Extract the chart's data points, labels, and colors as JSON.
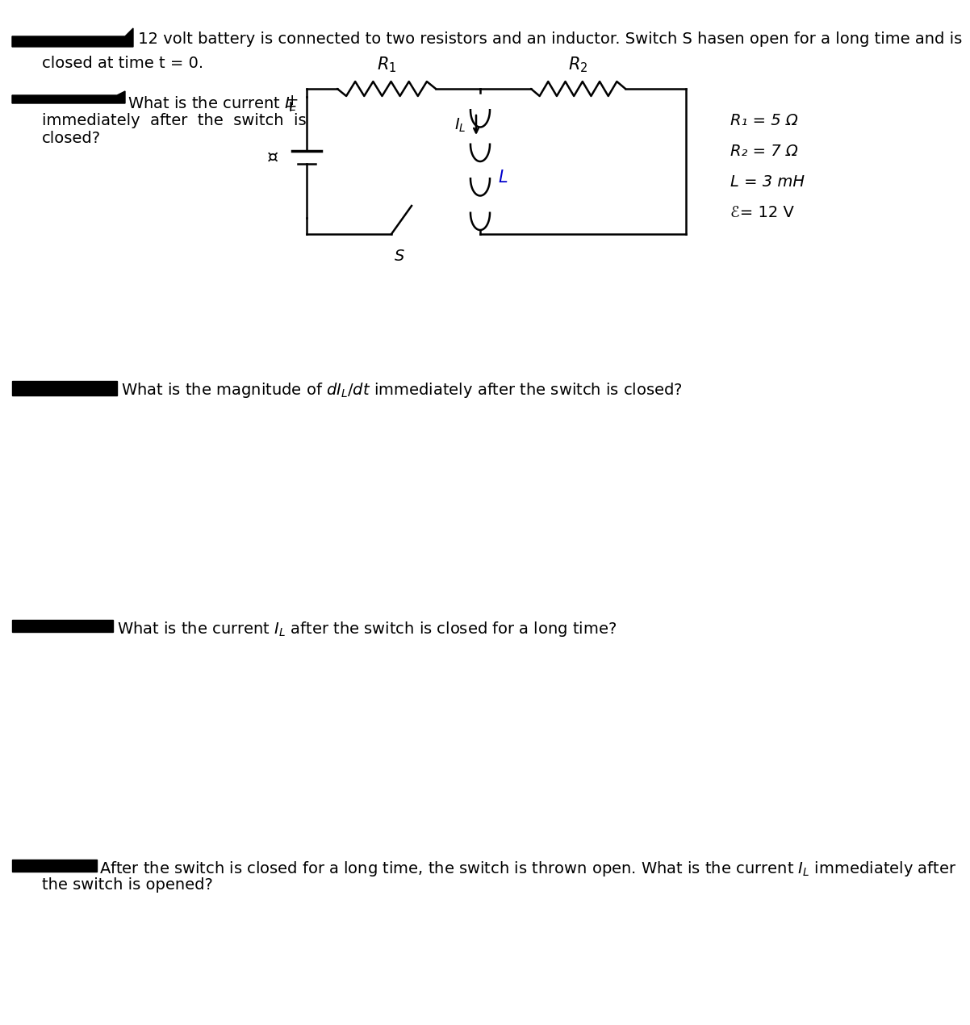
{
  "bg_color": "#ffffff",
  "title_line1": " 12 volt battery is connected to two resistors and an inductor. Switch S hasen open for a long time and is",
  "title_line2": "closed at time t = 0.",
  "q1_prefix": "What is the current ",
  "q1_sub": "L",
  "q1_rest1": "",
  "q1_text_full": "What is the current Iₗ\nimmediately  after  the  switch  is\nclosed?",
  "q2_text": "What is the magnitude of ",
  "q2_italic": "dIₗ/dt",
  "q2_rest": " immediately after the switch is closed?",
  "q3_text": "What is the current ",
  "q3_italic": "Iₗ",
  "q3_rest": " after the switch is closed for a long time?",
  "q4_line1": "After the switch is closed for a long time, the switch is thrown open. What is the current ",
  "q4_italic": "Iₗ",
  "q4_line1rest": " immediately after",
  "q4_line2": "the switch is opened?",
  "params": [
    "R₁ = 5 Ω",
    "R₂ = 7 Ω",
    "L = 3 mH",
    "ℰ= 12 V"
  ],
  "font_size": 14,
  "font_size_params": 14
}
